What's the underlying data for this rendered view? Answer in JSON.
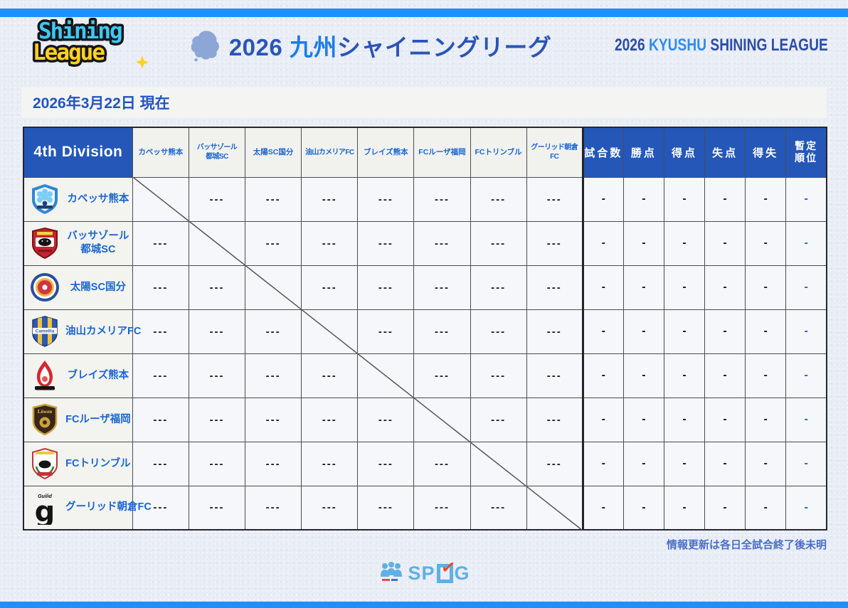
{
  "header": {
    "logo_line1": "Shining",
    "logo_line2": "League",
    "title_jp": {
      "year": "2026",
      "region": "九州",
      "rest": "シャイニングリーグ"
    },
    "title_en": {
      "year": "2026 ",
      "region": "KYUSHU ",
      "rest": "SHINING LEAGUE"
    }
  },
  "date_label": "2026年3月22日 現在",
  "table": {
    "division_label": "4th Division",
    "stat_headers": [
      "試合数",
      "勝点",
      "得点",
      "失点",
      "得失",
      "暫定順位"
    ],
    "teams": [
      {
        "name": "カベッサ熊本",
        "icon": "cavessa-kumamoto-crest"
      },
      {
        "name": "バッサゾール都城SC",
        "name_lines": [
          "バッサゾール",
          "都城SC"
        ],
        "icon": "vassazol-miyakonojo-crest"
      },
      {
        "name": "太陽SC国分",
        "icon": "taiyo-sc-kokubu-crest"
      },
      {
        "name": "油山カメリアFC",
        "icon": "aburayama-camellia-crest",
        "crest_text": "Camellia"
      },
      {
        "name": "ブレイズ熊本",
        "icon": "blaze-kumamoto-crest"
      },
      {
        "name": "FCルーザ福岡",
        "icon": "fc-loewen-fukuoka-crest",
        "crest_text": "Löwen"
      },
      {
        "name": "FCトリンブル",
        "icon": "fc-trimble-crest"
      },
      {
        "name": "グーリッド朝倉FC",
        "icon": "guilid-asakura-crest",
        "crest_text": "Guilid",
        "crest_letter": "g"
      }
    ],
    "matrix_placeholder": "---",
    "stat_placeholder": "-",
    "rank_placeholder": "-"
  },
  "footnote": "情報更新は各日全試合終了後未明",
  "sponsor": {
    "prefix": "SP",
    "suffix": "G"
  },
  "colors": {
    "accent_bar": "#1e8fff",
    "header_blue": "#2457b8",
    "team_text_blue": "#1b66d1",
    "rank_dash_blue": "#2160d4",
    "logo_cyan": "#3cc9f2",
    "logo_yellow": "#ffd21e"
  }
}
